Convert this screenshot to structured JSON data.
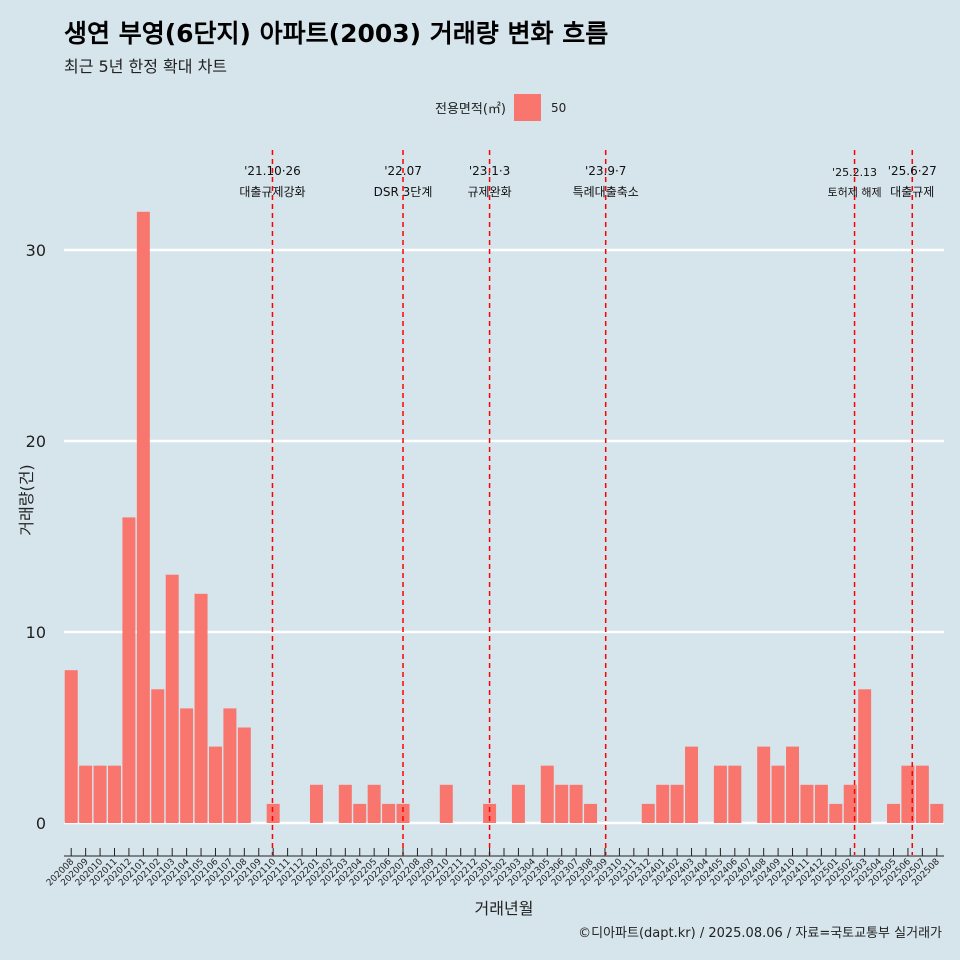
{
  "title": "생연 부영(6단지) 아파트(2003) 거래량 변화 흐름",
  "subtitle": "최근 5년 한정 확대 차트",
  "legend": {
    "title": "전용면적(㎡)",
    "label": "50",
    "color": "#f8766d"
  },
  "caption": "©디아파트(dapt.kr) / 2025.08.06 / 자료=국토교통부 실거래가",
  "chart_data": {
    "type": "bar",
    "xlabel": "거래년월",
    "ylabel": "거래량(건)",
    "ylim": [
      0,
      35
    ],
    "yticks": [
      0,
      10,
      20,
      30
    ],
    "grid": true,
    "legend_position": "top",
    "categories": [
      "202008",
      "202009",
      "202010",
      "202011",
      "202012",
      "202101",
      "202102",
      "202103",
      "202104",
      "202105",
      "202106",
      "202107",
      "202108",
      "202109",
      "202110",
      "202111",
      "202112",
      "202201",
      "202202",
      "202203",
      "202204",
      "202205",
      "202206",
      "202207",
      "202208",
      "202209",
      "202210",
      "202211",
      "202212",
      "202301",
      "202302",
      "202303",
      "202304",
      "202305",
      "202306",
      "202307",
      "202308",
      "202309",
      "202310",
      "202311",
      "202312",
      "202401",
      "202402",
      "202403",
      "202404",
      "202405",
      "202406",
      "202407",
      "202408",
      "202409",
      "202410",
      "202411",
      "202412",
      "202501",
      "202502",
      "202503",
      "202504",
      "202505",
      "202506",
      "202507",
      "202508"
    ],
    "series": [
      {
        "name": "50",
        "color": "#f8766d",
        "values": [
          8,
          3,
          3,
          3,
          16,
          32,
          7,
          13,
          6,
          12,
          4,
          6,
          5,
          0,
          1,
          0,
          0,
          2,
          0,
          2,
          1,
          2,
          1,
          1,
          0,
          0,
          2,
          0,
          0,
          1,
          0,
          2,
          0,
          3,
          2,
          2,
          1,
          0,
          0,
          0,
          1,
          2,
          2,
          4,
          0,
          3,
          3,
          0,
          4,
          3,
          4,
          2,
          2,
          1,
          2,
          7,
          0,
          1,
          3,
          3,
          1
        ]
      }
    ],
    "annotations": [
      {
        "at": "202110",
        "label_top": "'21.10·26",
        "label_bottom": "대출규제강화",
        "position": 14.45,
        "small": false
      },
      {
        "at": "202207",
        "label_top": "'22.07",
        "label_bottom": "DSR 3단계",
        "position": 23.5,
        "small": false
      },
      {
        "at": "202301",
        "label_top": "'23.1·3",
        "label_bottom": "규제완화",
        "position": 29.5,
        "small": false
      },
      {
        "at": "202309",
        "label_top": "'23.9·7",
        "label_bottom": "특례대출축소",
        "position": 37.55,
        "small": false
      },
      {
        "at": "202502",
        "label_top": "'25.2.13",
        "label_bottom": "토허제 해제",
        "position": 54.8,
        "small": true
      },
      {
        "at": "202506",
        "label_top": "'25.6·27",
        "label_bottom": "대출규제",
        "position": 58.8,
        "small": false
      }
    ]
  }
}
